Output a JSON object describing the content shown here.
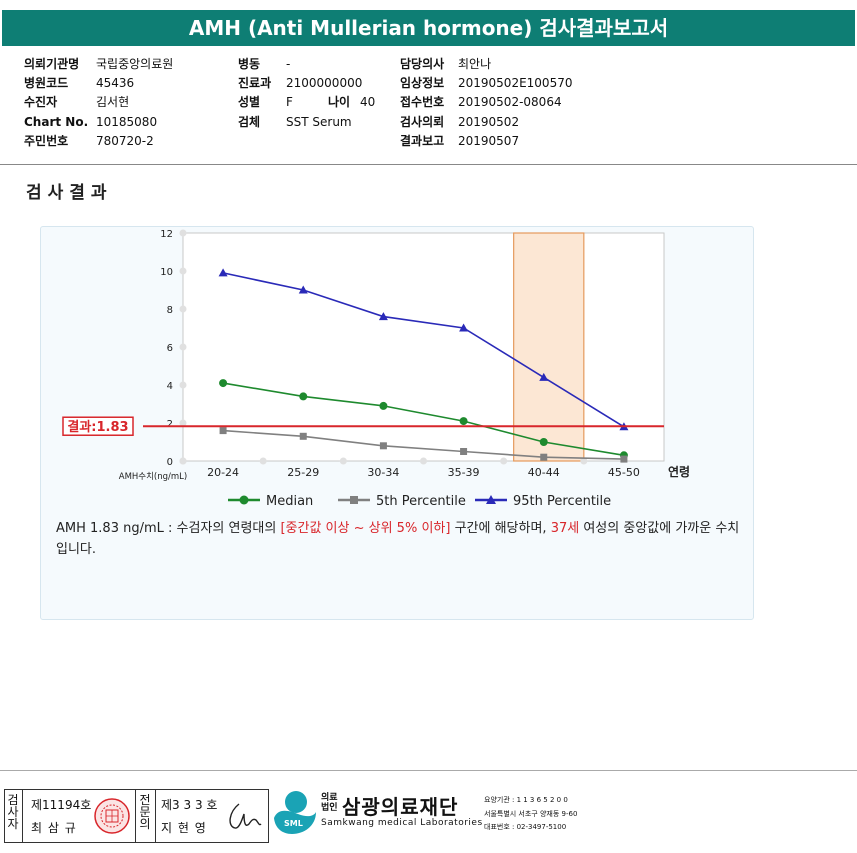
{
  "title": "AMH (Anti Mullerian hormone) 검사결과보고서",
  "info": {
    "institution_label": "의뢰기관명",
    "institution": "국립중앙의료원",
    "hospital_code_label": "병원코드",
    "hospital_code": "45436",
    "patient_label": "수진자",
    "patient": "김서현",
    "chart_no_label": "Chart No.",
    "chart_no": "10185080",
    "resident_no_label": "주민번호",
    "resident_no": "780720-2",
    "ward_label": "병동",
    "ward": "-",
    "department_label": "진료과",
    "department": "2100000000",
    "sex_label": "성별",
    "sex": "F",
    "age_label": "나이",
    "age": "40",
    "specimen_label": "검체",
    "specimen": "SST Serum",
    "doctor_label": "담당의사",
    "doctor": "최안나",
    "clinical_info_label": "임상정보",
    "clinical_info": "20190502E100570",
    "receipt_no_label": "접수번호",
    "receipt_no": "20190502-08064",
    "request_date_label": "검사의뢰",
    "request_date": "20190502",
    "report_date_label": "결과보고",
    "report_date": "20190507"
  },
  "section_title": "검사결과",
  "chart_data": {
    "type": "line",
    "categories": [
      "20-24",
      "25-29",
      "30-34",
      "35-39",
      "40-44",
      "45-50"
    ],
    "xlabel": "연령",
    "ylabel": "AMH수치(ng/mL)",
    "ylim": [
      0,
      12
    ],
    "yticks": [
      0,
      2,
      4,
      6,
      8,
      10,
      12
    ],
    "series": [
      {
        "name": "Median",
        "color": "#1e8a2e",
        "marker": "circle",
        "values": [
          4.1,
          3.4,
          2.9,
          2.1,
          1.0,
          0.3
        ]
      },
      {
        "name": "5th Percentile",
        "color": "#808080",
        "marker": "square",
        "values": [
          1.6,
          1.3,
          0.8,
          0.5,
          0.2,
          0.1
        ]
      },
      {
        "name": "95th Percentile",
        "color": "#2a2ab8",
        "marker": "triangle",
        "values": [
          9.9,
          9.0,
          7.6,
          7.0,
          4.4,
          1.8
        ]
      }
    ],
    "result_line": {
      "value": 1.83,
      "label": "결과:1.83",
      "color": "#d8262b"
    },
    "highlight_category": "40-44",
    "legend_position": "bottom",
    "grid": false
  },
  "description": {
    "part1": "AMH  1.83 ng/mL : 수검자의 연령대의 ",
    "highlight1": "[중간값 이상 ~ 상위 5% 이하]",
    "part2": " 구간에 해당하며, ",
    "highlight2": "37세",
    "part3": " 여성의 중앙값에 가까운 수치입니다."
  },
  "footer": {
    "examiner_label": "검사자",
    "examiner_no": "제11194호",
    "examiner_name": "최 삼 규",
    "specialist_label": "전문의",
    "specialist_no": "제3 3 3 호",
    "specialist_name": "지 현 영",
    "org_type": "의료\n법인",
    "org_name": "삼광의료재단",
    "org_name_en": "Samkwang medical Laboratories",
    "logo_text": "SML",
    "care_institution": "요양기관 : 1 1 3 6 5 2 0 0",
    "address": "서울특별시 서초구 양재동 9-60",
    "phone": "대표번호 : 02-3497-5100"
  }
}
